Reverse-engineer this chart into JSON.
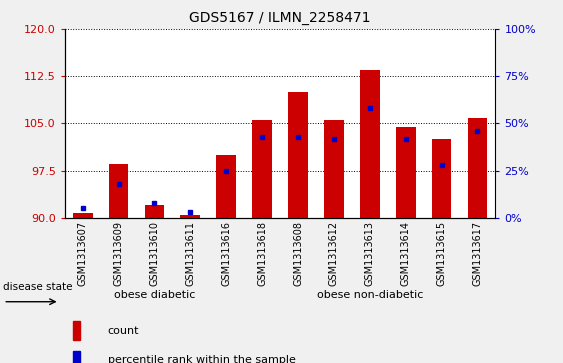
{
  "title": "GDS5167 / ILMN_2258471",
  "samples": [
    "GSM1313607",
    "GSM1313609",
    "GSM1313610",
    "GSM1313611",
    "GSM1313616",
    "GSM1313618",
    "GSM1313608",
    "GSM1313612",
    "GSM1313613",
    "GSM1313614",
    "GSM1313615",
    "GSM1313617"
  ],
  "count_values": [
    90.8,
    98.5,
    92.0,
    90.5,
    100.0,
    105.5,
    110.0,
    105.5,
    113.5,
    104.5,
    102.5,
    105.8
  ],
  "percentile_values": [
    5,
    18,
    8,
    3,
    25,
    43,
    43,
    42,
    58,
    42,
    28,
    46
  ],
  "ylim_left": [
    90,
    120
  ],
  "ylim_right": [
    0,
    100
  ],
  "yticks_left": [
    90,
    97.5,
    105,
    112.5,
    120
  ],
  "yticks_right": [
    0,
    25,
    50,
    75,
    100
  ],
  "bar_color": "#cc0000",
  "marker_color": "#0000cc",
  "group1_color": "#90ee90",
  "group2_color": "#55cc55",
  "group1_label": "obese diabetic",
  "group2_label": "obese non-diabetic",
  "group1_count": 5,
  "group2_count": 7,
  "disease_label": "disease state",
  "legend_count": "count",
  "legend_percentile": "percentile rank within the sample",
  "background_color": "#f0f0f0",
  "plot_bg_color": "#ffffff",
  "axis_color_left": "#cc0000",
  "axis_color_right": "#0000cc"
}
